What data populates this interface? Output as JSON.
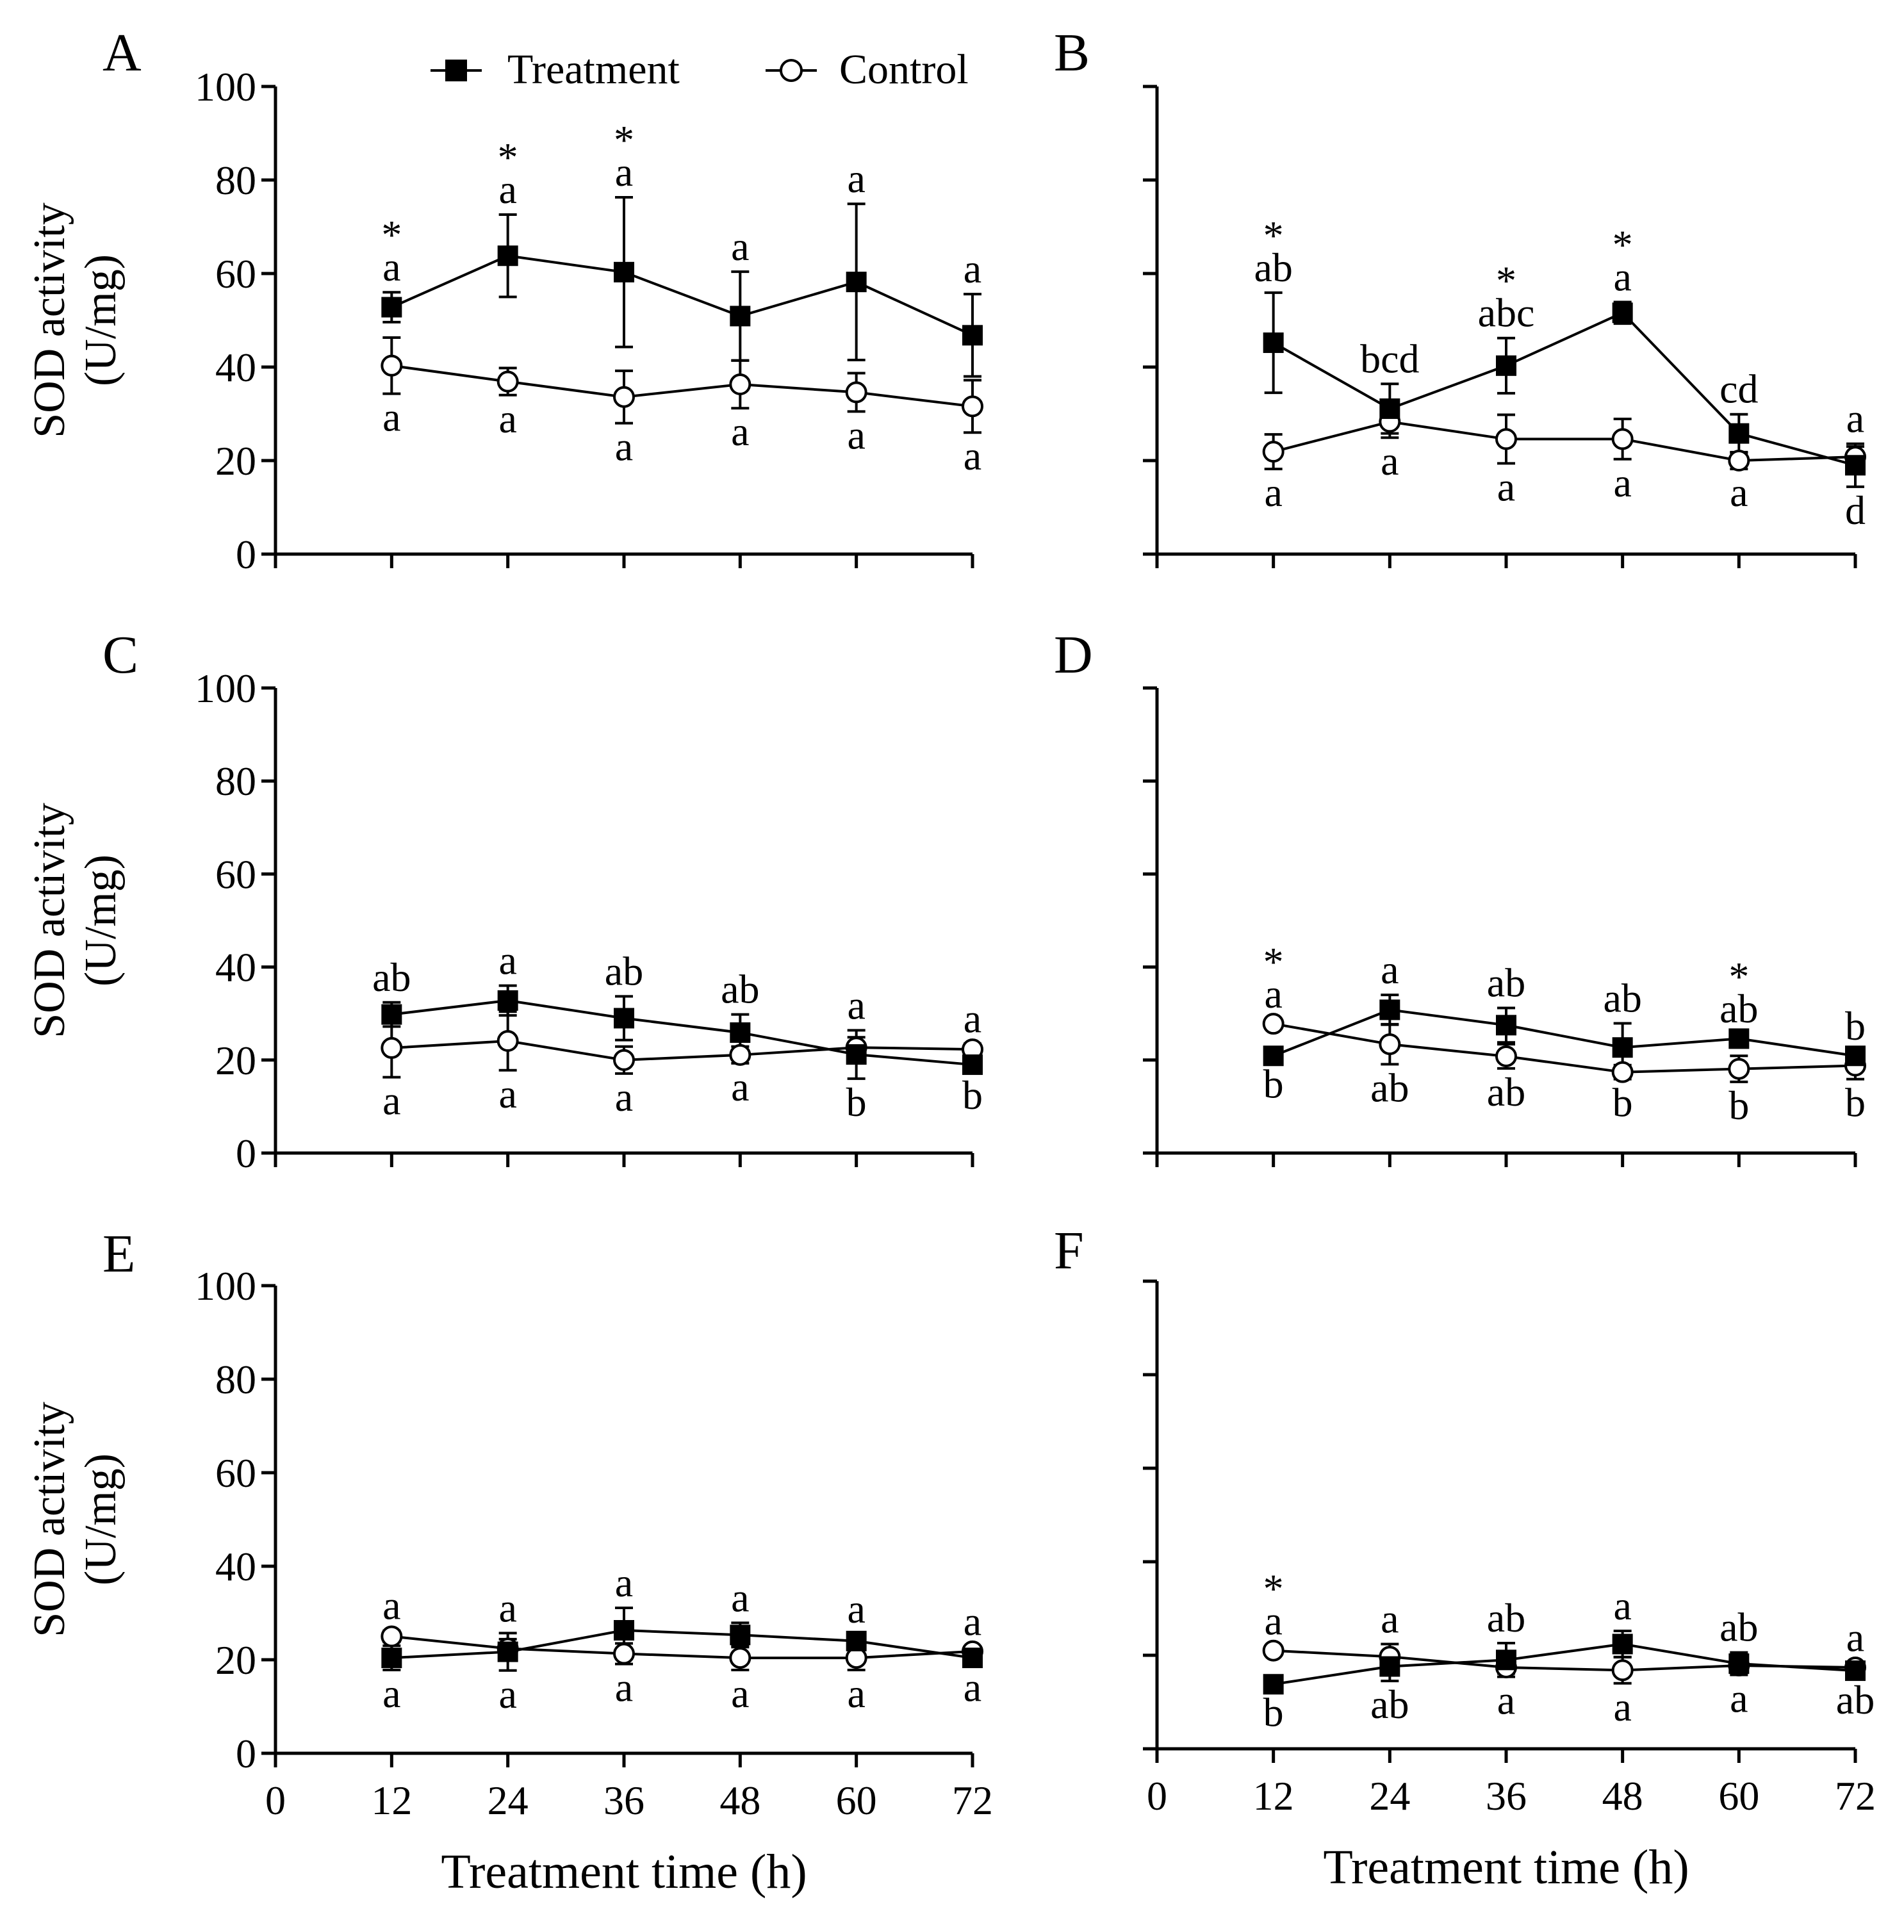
{
  "legend": {
    "treatment": "Treatment",
    "control": "Control"
  },
  "shared_axes": {
    "ylabel_line1": "SOD activity",
    "ylabel_line2": "(U/mg)",
    "xlabel": "Treatment time (h)",
    "yticks": [
      "0",
      "20",
      "40",
      "60",
      "80",
      "100"
    ],
    "xticks": [
      "0",
      "12",
      "24",
      "36",
      "48",
      "60",
      "72"
    ]
  },
  "chart_data": [
    {
      "panel": "A",
      "type": "line",
      "x": [
        12,
        24,
        36,
        48,
        60,
        72
      ],
      "xlim": [
        0,
        72
      ],
      "ylim": [
        0,
        100
      ],
      "xlabel": "",
      "ylabel": "SOD activity (U/mg)",
      "series": [
        {
          "name": "Treatment",
          "values": [
            52.8,
            63.8,
            60.3,
            50.9,
            58.2,
            46.8
          ],
          "err": [
            3.2,
            8.8,
            16.0,
            9.5,
            16.7,
            8.8
          ]
        },
        {
          "name": "Control",
          "values": [
            40.3,
            36.9,
            33.6,
            36.3,
            34.6,
            31.6
          ],
          "err": [
            6.0,
            2.9,
            5.6,
            5.1,
            4.1,
            5.6
          ]
        }
      ],
      "treatment_letters": [
        "a",
        "a",
        "a",
        "a",
        "a",
        "a"
      ],
      "control_letters": [
        "a",
        "a",
        "a",
        "a",
        "a",
        "a"
      ],
      "significance": [
        "*",
        "*",
        "*",
        "",
        "",
        ""
      ],
      "show_xticklabels": false,
      "show_yticklabels": true
    },
    {
      "panel": "B",
      "type": "line",
      "x": [
        12,
        24,
        36,
        48,
        60,
        72
      ],
      "xlim": [
        0,
        72
      ],
      "ylim": [
        0,
        100
      ],
      "xlabel": "",
      "ylabel": "",
      "series": [
        {
          "name": "Treatment",
          "values": [
            45.2,
            31.1,
            40.3,
            51.6,
            25.8,
            19.0
          ],
          "err": [
            10.7,
            5.3,
            5.9,
            2.3,
            4.1,
            4.6
          ]
        },
        {
          "name": "Control",
          "values": [
            21.9,
            28.3,
            24.6,
            24.6,
            20.0,
            20.8
          ],
          "err": [
            3.7,
            3.4,
            5.2,
            4.3,
            1.8,
            2.2
          ]
        }
      ],
      "treatment_letters": [
        "ab",
        "bcd",
        "abc",
        "a",
        "cd",
        "d"
      ],
      "control_letters": [
        "a",
        "a",
        "a",
        "a",
        "a",
        "a"
      ],
      "significance": [
        "*",
        "",
        "*",
        "*",
        "",
        ""
      ],
      "show_xticklabels": false,
      "show_yticklabels": false
    },
    {
      "panel": "C",
      "type": "line",
      "x": [
        12,
        24,
        36,
        48,
        60,
        72
      ],
      "xlim": [
        0,
        72
      ],
      "ylim": [
        0,
        100
      ],
      "xlabel": "",
      "ylabel": "SOD activity (U/mg)",
      "series": [
        {
          "name": "Treatment",
          "values": [
            29.8,
            32.8,
            29.0,
            25.9,
            21.2,
            19.0
          ],
          "err": [
            2.6,
            3.2,
            4.7,
            3.9,
            5.2,
            1.5
          ]
        },
        {
          "name": "Control",
          "values": [
            22.6,
            24.1,
            20.0,
            21.1,
            22.7,
            22.3
          ],
          "err": [
            6.3,
            6.3,
            2.9,
            1.8,
            2.2,
            1.2
          ]
        }
      ],
      "treatment_letters": [
        "ab",
        "a",
        "ab",
        "ab",
        "b",
        "b"
      ],
      "control_letters": [
        "a",
        "a",
        "a",
        "a",
        "a",
        "a"
      ],
      "significance": [
        "",
        "",
        "",
        "",
        "",
        ""
      ],
      "show_xticklabels": false,
      "show_yticklabels": true
    },
    {
      "panel": "D",
      "type": "line",
      "x": [
        12,
        24,
        36,
        48,
        60,
        72
      ],
      "xlim": [
        0,
        72
      ],
      "ylim": [
        0,
        100
      ],
      "xlabel": "",
      "ylabel": "",
      "series": [
        {
          "name": "Treatment",
          "values": [
            20.9,
            30.8,
            27.5,
            22.7,
            24.6,
            20.9
          ],
          "err": [
            1.0,
            3.2,
            3.7,
            5.2,
            1.0,
            1.0
          ]
        },
        {
          "name": "Control",
          "values": [
            27.8,
            23.4,
            20.8,
            17.4,
            18.1,
            18.8
          ],
          "err": [
            1.0,
            4.3,
            2.6,
            1.5,
            2.8,
            2.9
          ]
        }
      ],
      "treatment_letters": [
        "b",
        "a",
        "ab",
        "ab",
        "ab",
        "b"
      ],
      "control_letters": [
        "a",
        "ab",
        "ab",
        "b",
        "b",
        "b"
      ],
      "significance": [
        "*",
        "",
        "",
        "",
        "*",
        ""
      ],
      "show_xticklabels": false,
      "show_yticklabels": false
    },
    {
      "panel": "E",
      "type": "line",
      "x": [
        12,
        24,
        36,
        48,
        60,
        72
      ],
      "xlim": [
        0,
        72
      ],
      "ylim": [
        0,
        100
      ],
      "xlabel": "Treatment time (h)",
      "ylabel": "SOD activity (U/mg)",
      "series": [
        {
          "name": "Treatment",
          "values": [
            20.4,
            21.7,
            26.3,
            25.3,
            24.0,
            20.4
          ],
          "err": [
            2.6,
            4.0,
            4.8,
            2.6,
            1.5,
            1.3
          ]
        },
        {
          "name": "Control",
          "values": [
            25.0,
            22.4,
            21.3,
            20.4,
            20.4,
            21.8
          ],
          "err": [
            1.2,
            2.0,
            2.2,
            2.6,
            2.6,
            1.0
          ]
        }
      ],
      "treatment_letters": [
        "a",
        "a",
        "a",
        "a",
        "a",
        "a"
      ],
      "control_letters": [
        "a",
        "a",
        "a",
        "a",
        "a",
        "a"
      ],
      "significance": [
        "",
        "",
        "",
        "",
        "",
        ""
      ],
      "show_xticklabels": true,
      "show_yticklabels": true
    },
    {
      "panel": "F",
      "type": "line",
      "x": [
        12,
        24,
        36,
        48,
        60,
        72
      ],
      "xlim": [
        0,
        72
      ],
      "ylim": [
        0,
        100
      ],
      "xlabel": "Treatment time (h)",
      "ylabel": "",
      "series": [
        {
          "name": "Treatment",
          "values": [
            13.8,
            17.6,
            19.0,
            22.4,
            18.2,
            16.7
          ],
          "err": [
            1.0,
            3.1,
            3.6,
            2.8,
            2.4,
            1.2
          ]
        },
        {
          "name": "Control",
          "values": [
            21.0,
            19.7,
            17.4,
            16.8,
            17.8,
            17.4
          ],
          "err": [
            1.0,
            2.7,
            1.3,
            2.8,
            1.4,
            1.0
          ]
        }
      ],
      "treatment_letters": [
        "b",
        "ab",
        "ab",
        "a",
        "ab",
        "ab"
      ],
      "control_letters": [
        "a",
        "a",
        "a",
        "a",
        "a",
        "a"
      ],
      "significance": [
        "*",
        "",
        "",
        "",
        "",
        ""
      ],
      "show_xticklabels": true,
      "show_yticklabels": false
    }
  ]
}
